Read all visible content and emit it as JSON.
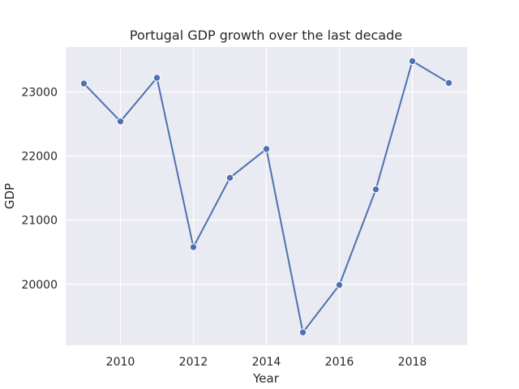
{
  "chart_data": {
    "type": "line",
    "title": "Portugal GDP growth over the last decade",
    "xlabel": "Year",
    "ylabel": "GDP",
    "xlim": [
      2008.5,
      2019.5
    ],
    "ylim": [
      19050,
      23700
    ],
    "xticks": [
      2010,
      2012,
      2014,
      2016,
      2018
    ],
    "yticks": [
      20000,
      21000,
      22000,
      23000
    ],
    "grid": true,
    "background_color": "#eaeaf2",
    "grid_color": "#ffffff",
    "series": [
      {
        "color": "#4c72b0",
        "marker": "circle",
        "x": [
          2009,
          2010,
          2011,
          2012,
          2013,
          2014,
          2015,
          2016,
          2017,
          2018,
          2019
        ],
        "y": [
          23130,
          22540,
          23220,
          20580,
          21660,
          22110,
          19250,
          19990,
          21480,
          23480,
          23140
        ]
      }
    ]
  }
}
